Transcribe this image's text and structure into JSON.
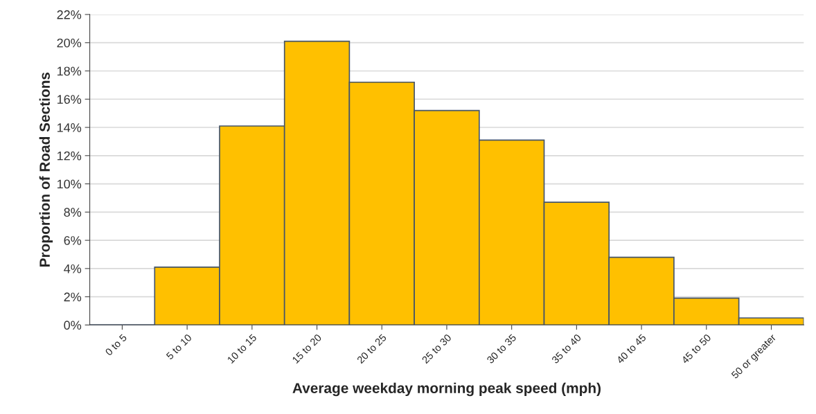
{
  "chart_data": {
    "type": "bar",
    "xlabel": "Average weekday morning peak speed (mph)",
    "ylabel": "Proportion of Road Sections",
    "categories": [
      "0 to 5",
      "5 to 10",
      "10 to 15",
      "15 to 20",
      "20 to 25",
      "25 to 30",
      "30 to 35",
      "35 to 40",
      "40 to 45",
      "45 to 50",
      "50 or greater"
    ],
    "values": [
      0,
      4.1,
      14.1,
      20.1,
      17.2,
      15.2,
      13.1,
      8.7,
      4.8,
      1.9,
      0.5
    ],
    "colors": [
      "#44546a",
      "#ffc000",
      "#ffc000",
      "#ffc000",
      "#ffc000",
      "#ffc000",
      "#ffc000",
      "#ffc000",
      "#ffc000",
      "#ffc000",
      "#ffc000"
    ],
    "ylim": [
      0,
      22
    ],
    "yticks": [
      {
        "value": 0,
        "label": "0%"
      },
      {
        "value": 2,
        "label": "2%"
      },
      {
        "value": 4,
        "label": "4%"
      },
      {
        "value": 6,
        "label": "6%"
      },
      {
        "value": 8,
        "label": "8%"
      },
      {
        "value": 10,
        "label": "10%"
      },
      {
        "value": 12,
        "label": "12%"
      },
      {
        "value": 14,
        "label": "14%"
      },
      {
        "value": 16,
        "label": "16%"
      },
      {
        "value": 18,
        "label": "18%"
      },
      {
        "value": 20,
        "label": "20%"
      },
      {
        "value": 22,
        "label": "22%"
      }
    ],
    "grid": "y"
  }
}
